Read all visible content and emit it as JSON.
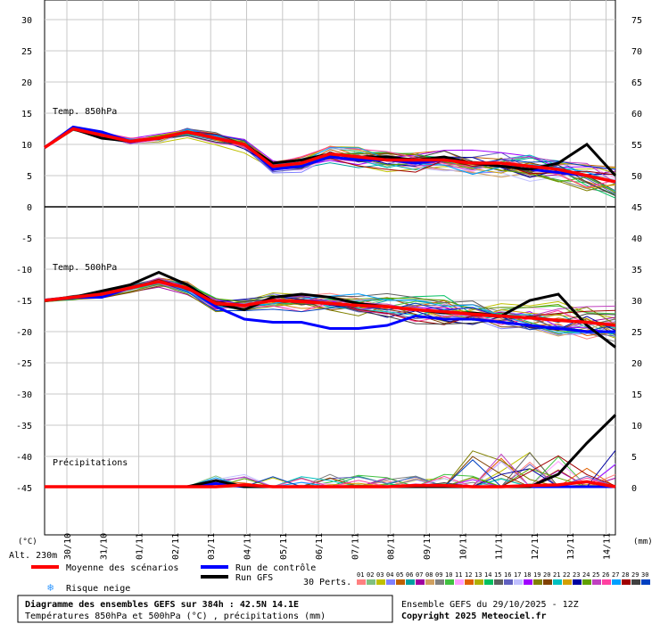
{
  "chart_data": {
    "type": "line",
    "title": "Diagramme des ensembles GEFS sur 384h : 42.5N 14.1E",
    "subtitle": "Températures 850hPa et 500hPa (°C) , précipitations (mm)",
    "left_axis_ticks": [
      30,
      25,
      20,
      15,
      10,
      5,
      0,
      -5,
      -10,
      -15,
      -20,
      -25,
      -30,
      -35,
      -40,
      -45
    ],
    "right_axis_ticks": [
      75,
      70,
      65,
      60,
      55,
      50,
      45,
      40,
      35,
      30,
      25,
      20,
      15,
      10,
      5,
      0
    ],
    "left_unit": "(°C)",
    "right_unit": "(mm)",
    "altitude": "Alt. 230m",
    "panel_labels": {
      "t850": "Temp. 850hPa",
      "t500": "Temp. 500hPa",
      "precip": "Précipitations"
    },
    "x_labels": [
      "30/10",
      "31/10",
      "01/11",
      "02/11",
      "03/11",
      "04/11",
      "05/11",
      "06/11",
      "07/11",
      "08/11",
      "09/11",
      "10/11",
      "11/11",
      "12/11",
      "13/11",
      "14/11"
    ],
    "x_range_hours": [
      0,
      384
    ],
    "grid": true,
    "series": [
      {
        "name": "Moyenne des scénarios",
        "color": "#ff0000",
        "t850": [
          9.5,
          12.5,
          11.5,
          10.5,
          11,
          12,
          11,
          10,
          6.5,
          7,
          8.5,
          8,
          7.5,
          7.5,
          7.5,
          7,
          7,
          6.5,
          6,
          5,
          4
        ],
        "t500": [
          -15,
          -14.5,
          -14,
          -13,
          -12,
          -13,
          -15.5,
          -15.8,
          -15,
          -15.2,
          -15.5,
          -15.8,
          -16,
          -16.5,
          -16.8,
          -17.2,
          -17.5,
          -17.8,
          -18.2,
          -18.5,
          -19
        ],
        "precip_mm": [
          0,
          0,
          0,
          0,
          0,
          0,
          0,
          0.3,
          0,
          0,
          0,
          0,
          0,
          0.2,
          0.2,
          0,
          0,
          0.2,
          0.3,
          0.8,
          0
        ]
      },
      {
        "name": "Run de contrôle",
        "color": "#0000ff",
        "t850": [
          9.5,
          12.8,
          12,
          10.5,
          11,
          12,
          11,
          10,
          6,
          6.5,
          8,
          7.5,
          7.5,
          7,
          7.5,
          7,
          6.5,
          6,
          5.5,
          5,
          4
        ],
        "t500": [
          -15,
          -14.5,
          -14.5,
          -13,
          -12,
          -13,
          -16,
          -18,
          -18.5,
          -18.5,
          -19.5,
          -19.5,
          -19,
          -17.5,
          -18,
          -18,
          -18.5,
          -19,
          -19.5,
          -20,
          -20
        ],
        "precip_mm": [
          0,
          0,
          0,
          0,
          0,
          0,
          0.5,
          0,
          0,
          0,
          0,
          0,
          0,
          0,
          0,
          0,
          0,
          0,
          0,
          0,
          0
        ]
      },
      {
        "name": "Run GFS",
        "color": "#000000",
        "t850": [
          9.5,
          12.5,
          11,
          10.5,
          11,
          12,
          11,
          10,
          7,
          7.5,
          8.5,
          8,
          8,
          7.5,
          8,
          7,
          6.5,
          6,
          7,
          10,
          5
        ],
        "t500": [
          -15,
          -14.5,
          -13.5,
          -12.5,
          -10.5,
          -12.5,
          -15.5,
          -16.5,
          -14.5,
          -14,
          -14.5,
          -15.5,
          -16,
          -16.5,
          -17,
          -17,
          -17.5,
          -15,
          -14,
          -19,
          -22.5
        ],
        "precip_mm": [
          0,
          0,
          0,
          0,
          0,
          0,
          1,
          0,
          0,
          0,
          0,
          0,
          0,
          0,
          0,
          0,
          0,
          0,
          2,
          7,
          11.5
        ]
      }
    ],
    "members_label": "30 Perts.",
    "member_ids": [
      "01",
      "02",
      "03",
      "04",
      "05",
      "06",
      "07",
      "08",
      "09",
      "10",
      "11",
      "12",
      "13",
      "14",
      "15",
      "16",
      "17",
      "18",
      "19",
      "20",
      "21",
      "22",
      "23",
      "24",
      "25",
      "26",
      "27",
      "28",
      "29",
      "30"
    ],
    "member_colors": [
      "#ff8080",
      "#80c080",
      "#c0c000",
      "#8080ff",
      "#c06000",
      "#00a0a0",
      "#a000a0",
      "#d0a060",
      "#808080",
      "#40c040",
      "#ffa0ff",
      "#e06000",
      "#b0b000",
      "#00c060",
      "#606060",
      "#6060c0",
      "#c0c0ff",
      "#a000ff",
      "#808000",
      "#804000",
      "#00c0c0",
      "#d4a000",
      "#0000a0",
      "#60a000",
      "#c040c0",
      "#ff40a0",
      "#00a0ff",
      "#a00000",
      "#404040",
      "#0040c0"
    ]
  },
  "legend": {
    "mean": "Moyenne des scénarios",
    "control": "Run de contrôle",
    "gfs": "Run GFS",
    "snow": "Risque neige",
    "snow_icon": "snowflake-icon"
  },
  "footer": {
    "title": "Diagramme des ensembles GEFS sur 384h : 42.5N 14.1E",
    "subtitle": "Températures 850hPa et 500hPa (°C) , précipitations (mm)",
    "run": "Ensemble GEFS du 29/10/2025 - 12Z",
    "copyright": "Copyright 2025 Meteociel.fr"
  }
}
